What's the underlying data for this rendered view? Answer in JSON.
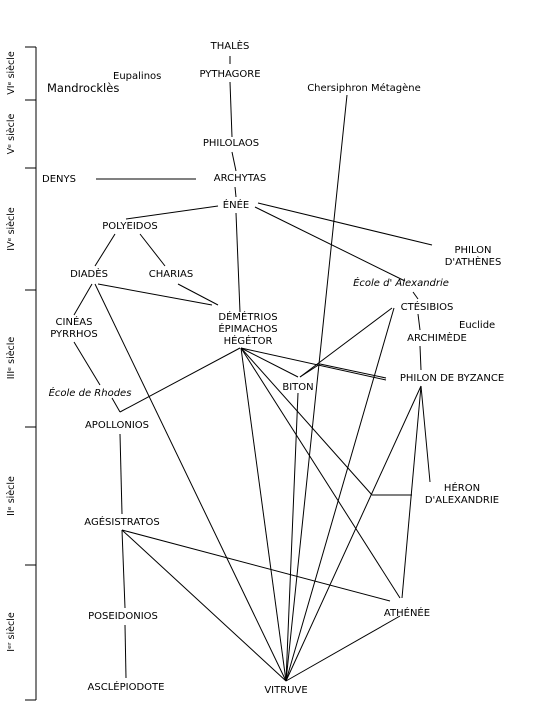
{
  "centuries": [
    "VIᵉ siècle",
    "Vᵉ siècle",
    "IVᵉ siècle",
    "IIIᵉ siècle",
    "IIᵉ siècle",
    "Iᵉʳ siècle"
  ],
  "nodes": {
    "thales": "THALÈS",
    "pythagore": "PYTHAGORE",
    "eupalinos": "Eupalinos",
    "mandrocles": "Mandrocklès",
    "chersiphron": "Chersiphron Métagène",
    "philolaos": "PHILOLAOS",
    "denys": "DENYS",
    "archytas": "ARCHYTAS",
    "enee": "ÉNÉE",
    "polyeidos": "POLYEIDOS",
    "philon_athenes": [
      "PHILON",
      "D'ATHÈNES"
    ],
    "diades": "DIADÈS",
    "charias": "CHARIAS",
    "ecole_alexandrie": "École d' Alexandrie",
    "ctesibios": "CTÉSIBIOS",
    "euclide": "Euclide",
    "archimede": "ARCHIMÈDE",
    "cineas": [
      "CINÉAS",
      "PYRRHOS"
    ],
    "demetrios": [
      "DÉMÉTRIOS",
      "ÉPIMACHOS",
      "HÉGÉTOR"
    ],
    "ecole_rhodes": "École de Rhodes",
    "biton": "BITON",
    "philon_byzance": "PHILON DE BYZANCE",
    "apollonios": "APOLLONIOS",
    "heron": [
      "HÉRON",
      "D'ALEXANDRIE"
    ],
    "agesistratos": "AGÉSISTRATOS",
    "poseidonios": "POSEIDONIOS",
    "athenee": "ATHÉNÉE",
    "asclepiodote": "ASCLÉPIODOTE",
    "vitruve": "VITRUVE"
  },
  "line_color": "#000000"
}
